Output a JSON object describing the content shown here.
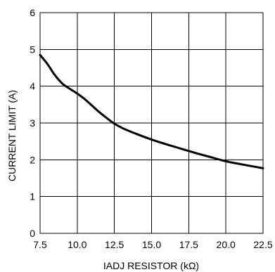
{
  "chart_data": {
    "type": "line",
    "xlabel": "IADJ RESISTOR (kΩ)",
    "ylabel": "CURRENT LIMIT (A)",
    "xlim": [
      7.5,
      22.5
    ],
    "ylim": [
      0,
      6
    ],
    "xticks": [
      7.5,
      10.0,
      12.5,
      15.0,
      17.5,
      20.0,
      22.5
    ],
    "xtick_labels": [
      "7.5",
      "10.0",
      "12.5",
      "15.0",
      "17.5",
      "20.0",
      "22.5"
    ],
    "yticks": [
      0,
      1,
      2,
      3,
      4,
      5,
      6
    ],
    "ytick_labels": [
      "0",
      "1",
      "2",
      "3",
      "4",
      "5",
      "6"
    ],
    "grid": true,
    "series": [
      {
        "x": [
          7.5,
          8.0,
          8.5,
          9.0,
          9.5,
          10.0,
          10.5,
          11.0,
          11.5,
          12.0,
          12.5,
          13.0,
          13.5,
          14.0,
          15.0,
          16.0,
          17.0,
          18.0,
          19.0,
          20.0,
          21.0,
          22.5
        ],
        "values": [
          4.85,
          4.6,
          4.3,
          4.07,
          3.93,
          3.8,
          3.65,
          3.47,
          3.29,
          3.13,
          2.98,
          2.87,
          2.78,
          2.7,
          2.55,
          2.42,
          2.3,
          2.18,
          2.07,
          1.96,
          1.88,
          1.77
        ]
      }
    ]
  }
}
